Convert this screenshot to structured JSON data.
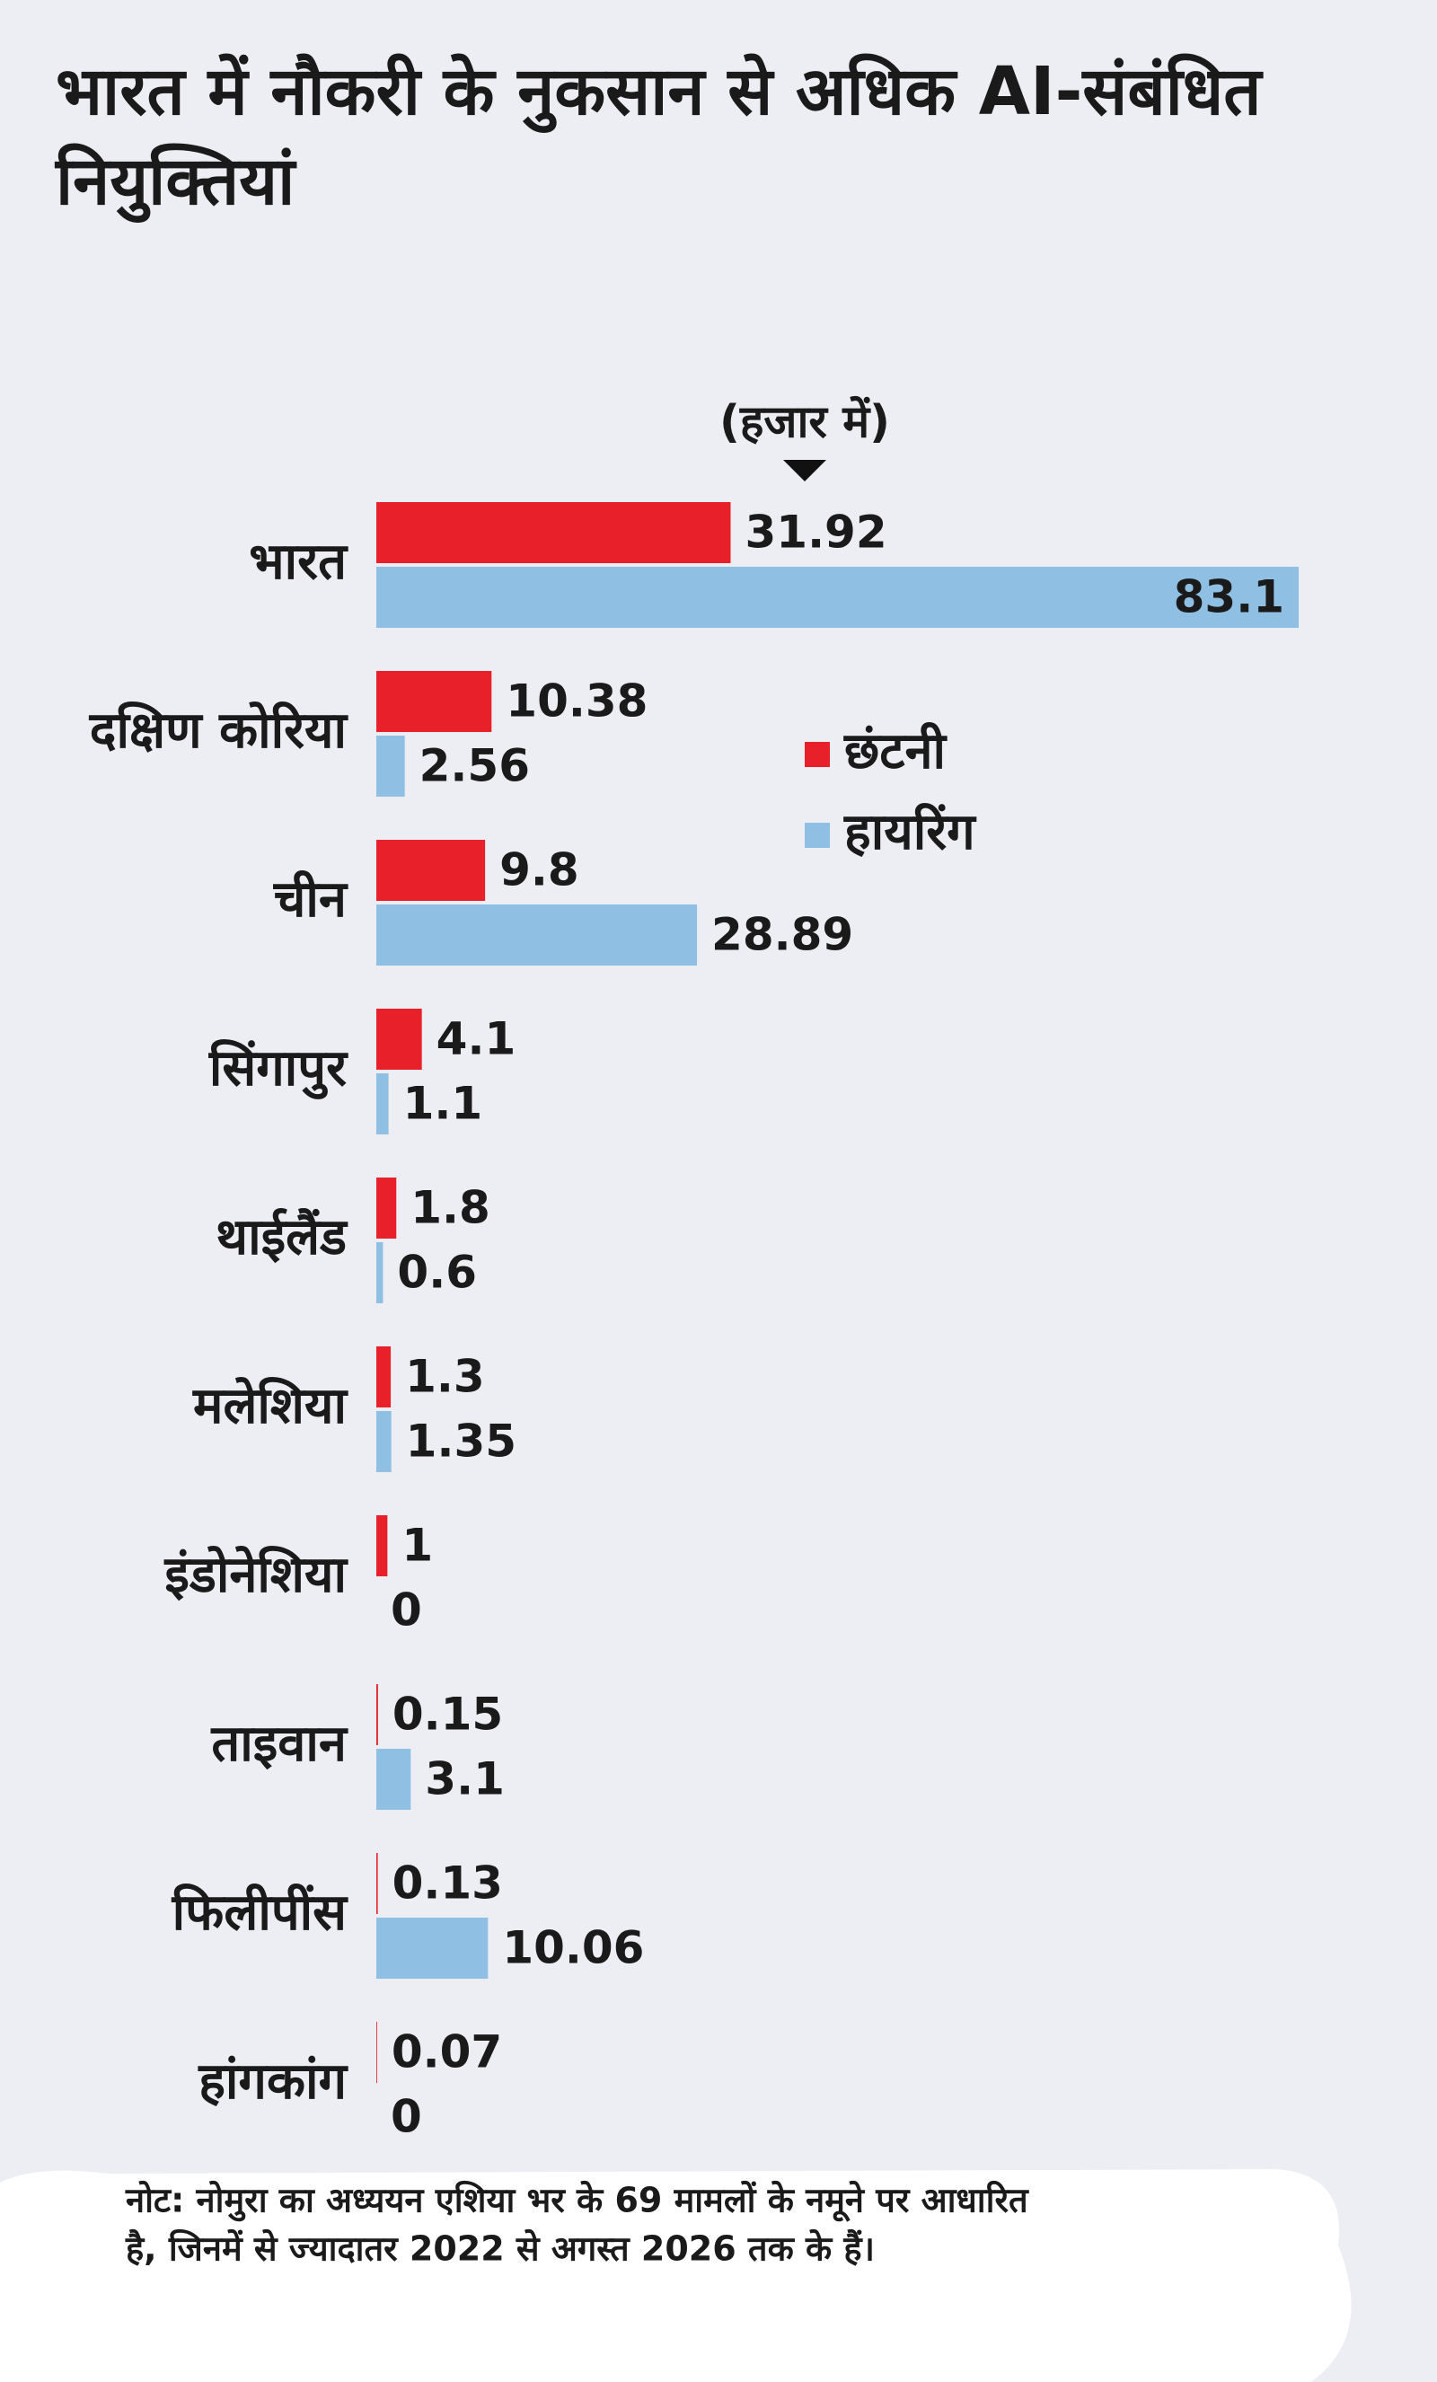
{
  "chart_data": {
    "type": "bar",
    "orientation": "horizontal",
    "title": "भारत में नौकरी के नुकसान से अधिक AI-संबंधित नियुक्तियां",
    "unit_label": "(हजार में)",
    "categories": [
      "भारत",
      "दक्षिण कोरिया",
      "चीन",
      "सिंगापुर",
      "थाईलैंड",
      "मलेशिया",
      "इंडोनेशिया",
      "ताइवान",
      "फिलीपींस",
      "हांगकांग"
    ],
    "series": [
      {
        "name": "छंटनी",
        "color": "#e8202a",
        "values": [
          31.92,
          10.38,
          9.8,
          4.1,
          1.8,
          1.3,
          1,
          0.15,
          0.13,
          0.07
        ]
      },
      {
        "name": "हायरिंग",
        "color": "#8fc0e3",
        "values": [
          83.1,
          2.56,
          28.89,
          1.1,
          0.6,
          1.35,
          0,
          3.1,
          10.06,
          0
        ]
      }
    ],
    "note": [
      "नोट: नोमुरा का अध्ययन एशिया भर के 69 मामलों के नमूने पर आधारित",
      "है, जिनमें से ज्यादातर 2022 से अगस्त 2026 तक के हैं।"
    ]
  }
}
